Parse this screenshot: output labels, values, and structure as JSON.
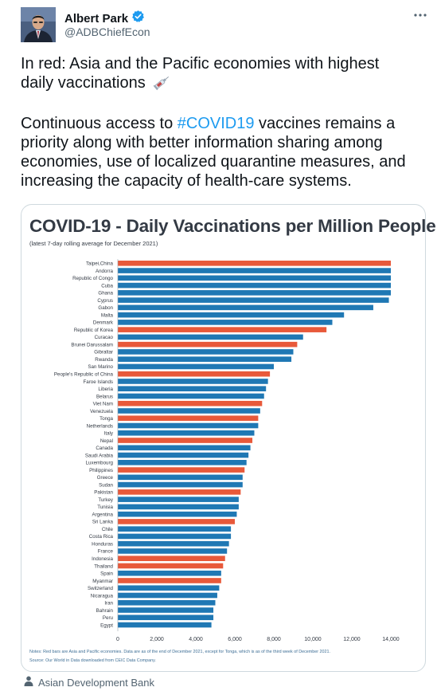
{
  "user": {
    "name": "Albert Park",
    "handle": "@ADBChiefEcon"
  },
  "tweet": {
    "line1": "In red: Asia and the Pacific economies with highest",
    "line2": "daily vaccinations",
    "para2_before": "Continuous access to ",
    "hashtag": "#COVID19",
    "para2_after": " vaccines remains a priority along with better information sharing among economies, use of localized quarantine measures, and increasing the capacity of health-care systems."
  },
  "card": {
    "note1": "Notes: Red bars are Asia and Pacific economies. Data are as of the end of December 2021, except for Tonga, which is as of the third week of December 2021.",
    "note2": "Source: Our World in Data downloaded from CEIC Data Company."
  },
  "source_label": "Asian Development Bank",
  "colors": {
    "asia_pacific": "#e8593a",
    "other": "#1f78b4",
    "link": "#1d9bf0"
  },
  "chart_data": {
    "type": "bar",
    "orientation": "horizontal",
    "title": "COVID-19 - Daily Vaccinations per Million People",
    "subtitle": "(latest 7-day rolling average for December 2021)",
    "x_ticks": [
      "0",
      "2,000",
      "4,000",
      "6,000",
      "8,000",
      "10,000",
      "12,000",
      "14,000"
    ],
    "xlim": [
      0,
      14000
    ],
    "categories": [
      "Taipei,China",
      "Andorra",
      "Republic of Congo",
      "Cuba",
      "Ghana",
      "Cyprus",
      "Gabon",
      "Malta",
      "Denmark",
      "Republic of Korea",
      "Curacao",
      "Brunei Darussalam",
      "Gibraltar",
      "Rwanda",
      "San Marino",
      "People's Republic of China",
      "Faroe Islands",
      "Liberia",
      "Belarus",
      "Viet Nam",
      "Venezuela",
      "Tonga",
      "Netherlands",
      "Italy",
      "Nepal",
      "Canada",
      "Saudi Arabia",
      "Luxembourg",
      "Philippines",
      "Greece",
      "Sudan",
      "Pakistan",
      "Turkey",
      "Tunisia",
      "Argentina",
      "Sri Lanka",
      "Chile",
      "Costa Rica",
      "Honduras",
      "France",
      "Indonesia",
      "Thailand",
      "Spain",
      "Myanmar",
      "Switzerland",
      "Nicaragua",
      "Iran",
      "Bahrain",
      "Peru",
      "Egypt"
    ],
    "values": [
      14000,
      14000,
      14000,
      14000,
      14000,
      13900,
      13100,
      11600,
      11000,
      10700,
      9500,
      9200,
      9000,
      8900,
      8000,
      7800,
      7700,
      7600,
      7500,
      7400,
      7300,
      7200,
      7200,
      7000,
      6900,
      6800,
      6700,
      6600,
      6500,
      6400,
      6400,
      6300,
      6200,
      6200,
      6100,
      6000,
      5800,
      5800,
      5700,
      5600,
      5500,
      5400,
      5300,
      5300,
      5200,
      5100,
      5000,
      4900,
      4900,
      4800
    ],
    "asia_pacific": [
      true,
      false,
      false,
      false,
      false,
      false,
      false,
      false,
      false,
      true,
      false,
      true,
      false,
      false,
      false,
      true,
      false,
      false,
      false,
      true,
      false,
      true,
      false,
      false,
      true,
      false,
      false,
      false,
      true,
      false,
      false,
      true,
      false,
      false,
      false,
      true,
      false,
      false,
      false,
      false,
      true,
      true,
      false,
      true,
      false,
      false,
      false,
      false,
      false,
      false
    ],
    "grid": false,
    "legend": "none"
  }
}
